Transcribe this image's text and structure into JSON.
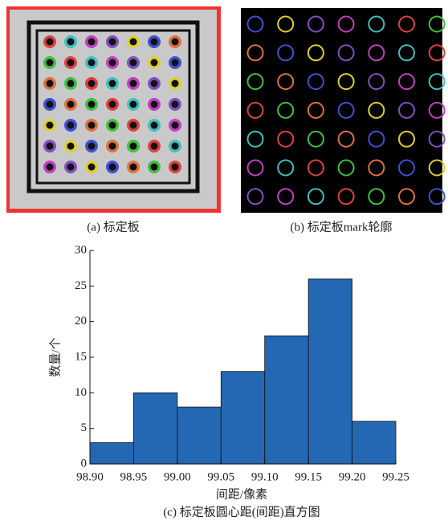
{
  "figures": [
    {
      "caption": "(a) 标定板"
    },
    {
      "caption": "(b) 标定板mark轮廓"
    }
  ],
  "chart_data": {
    "type": "histogram",
    "caption": "(c) 标定板圆心距(间距)直方图",
    "xlabel": "间距/像素",
    "ylabel": "数量/个",
    "bins": [
      98.9,
      98.95,
      99.0,
      99.05,
      99.1,
      99.15,
      99.2,
      99.25
    ],
    "values": [
      3,
      10,
      8,
      13,
      18,
      26,
      6
    ],
    "color": "#2467b3",
    "xlim": [
      98.9,
      99.25
    ],
    "xticks": [
      {
        "value": 98.9,
        "label": "98.90"
      },
      98.95,
      {
        "value": 99.0,
        "label": "99.00"
      },
      99.05,
      {
        "value": 99.1,
        "label": "99.10"
      },
      99.15,
      {
        "value": 99.2,
        "label": "99.20"
      },
      99.25
    ],
    "ylim": [
      0,
      30
    ],
    "yticks": [
      0,
      5,
      10,
      15,
      20,
      25,
      30
    ]
  }
}
